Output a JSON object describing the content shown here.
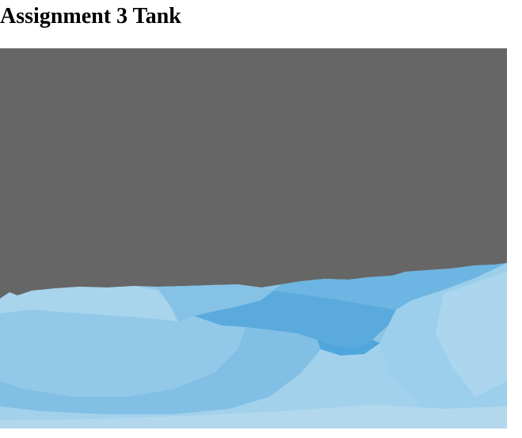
{
  "page": {
    "title": "Assignment 3 Tank"
  },
  "scene": {
    "sky_color": "#666666",
    "terrain_colors": {
      "base": "#8cc6e6",
      "light": "#a8d4ec",
      "mid": "#7dbce3",
      "deep": "#4fa6dc",
      "pale": "#b3d8ee"
    }
  }
}
